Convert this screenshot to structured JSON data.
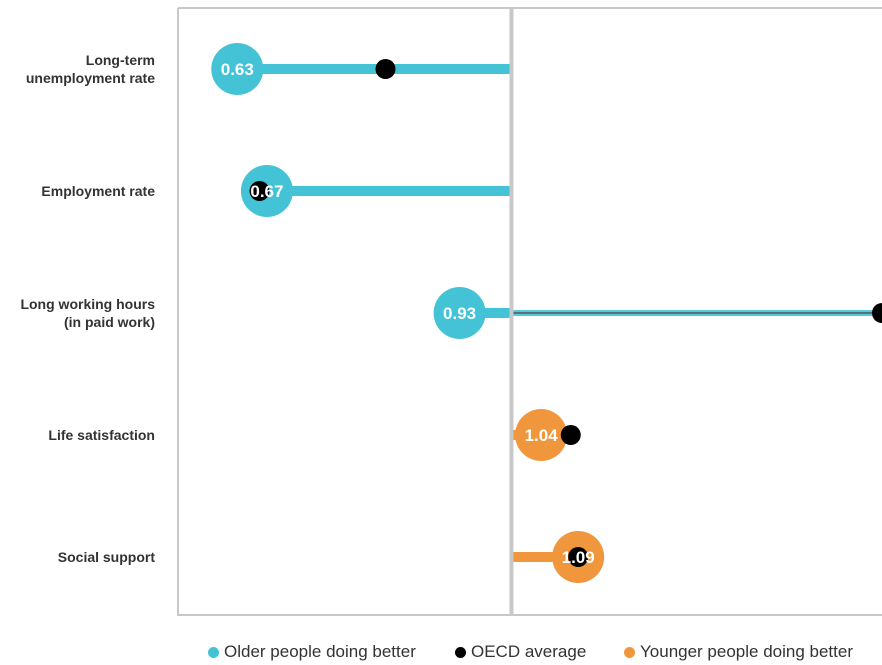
{
  "colors": {
    "older": "#45c3d6",
    "younger": "#f0963c",
    "oecd": "#000000",
    "axis": "#c8c8c8",
    "refline": "#555555",
    "label_text": "#333333"
  },
  "chart_data": {
    "type": "dot-bar",
    "orientation": "horizontal",
    "baseline": 1.0,
    "xlim": [
      0.55,
      1.5
    ],
    "categories": [
      "Long-term unemployment rate",
      "Employment rate",
      "Long working hours (in paid work)",
      "Life satisfaction",
      "Social support"
    ],
    "category_labels": [
      [
        "Long-term",
        "unemployment rate"
      ],
      [
        "Employment rate"
      ],
      [
        "Long working hours",
        "(in paid work)"
      ],
      [
        "Life satisfaction"
      ],
      [
        "Social support"
      ]
    ],
    "series": [
      {
        "name": "Older people doing better",
        "applies_when": "value < 1",
        "color": "#45c3d6"
      },
      {
        "name": "OECD average",
        "color": "#000000"
      },
      {
        "name": "Younger people doing better",
        "applies_when": "value > 1",
        "color": "#f0963c"
      }
    ],
    "values": [
      0.63,
      0.67,
      0.93,
      1.04,
      1.09
    ],
    "value_labels": [
      "0.63",
      "0.67",
      "0.93",
      "1.04",
      "1.09"
    ],
    "oecd_average": [
      0.83,
      0.66,
      1.5,
      1.08,
      1.09
    ],
    "legend_position": "bottom",
    "grid": false
  },
  "legend": [
    {
      "label": "Older people doing better",
      "color": "#45c3d6"
    },
    {
      "label": "OECD average",
      "color": "#000000"
    },
    {
      "label": "Younger people doing better",
      "color": "#f0963c"
    }
  ]
}
